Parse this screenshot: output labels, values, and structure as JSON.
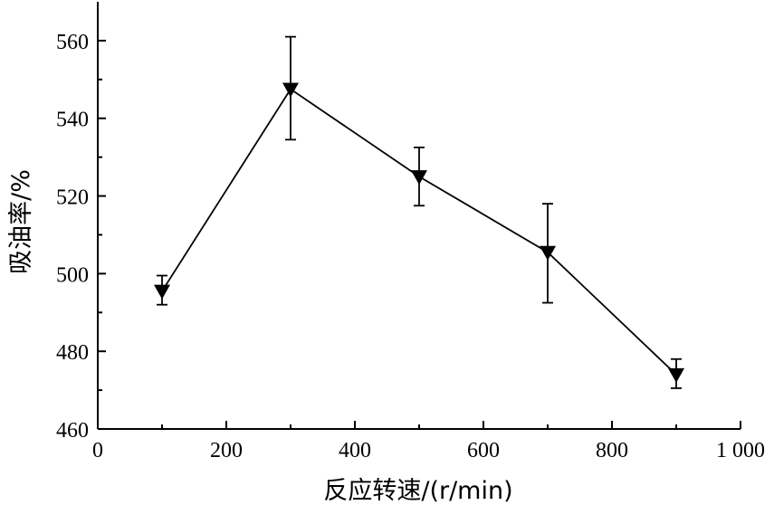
{
  "chart_data": {
    "type": "line",
    "title": "",
    "xlabel": "反应转速/(r/min)",
    "ylabel": "吸油率/%",
    "xlim": [
      0,
      1000
    ],
    "ylim": [
      460,
      570
    ],
    "x_ticks": [
      0,
      200,
      400,
      600,
      800,
      1000
    ],
    "x_tick_labels": [
      "0",
      "200",
      "400",
      "600",
      "800",
      "1 000"
    ],
    "y_ticks": [
      460,
      480,
      500,
      520,
      540,
      560
    ],
    "y_tick_labels": [
      "460",
      "480",
      "500",
      "520",
      "540",
      "560"
    ],
    "marker": "triangle-down",
    "grid": false,
    "series": [
      {
        "x": [
          100,
          300,
          500,
          700,
          900
        ],
        "y": [
          495.5,
          547.5,
          525,
          505.5,
          474
        ],
        "error_low": [
          492,
          534.5,
          517.5,
          492.5,
          470.5
        ],
        "error_high": [
          499.5,
          561,
          532.5,
          518,
          478
        ]
      }
    ],
    "colors": {
      "line": "#000000",
      "marker": "#000000"
    }
  }
}
